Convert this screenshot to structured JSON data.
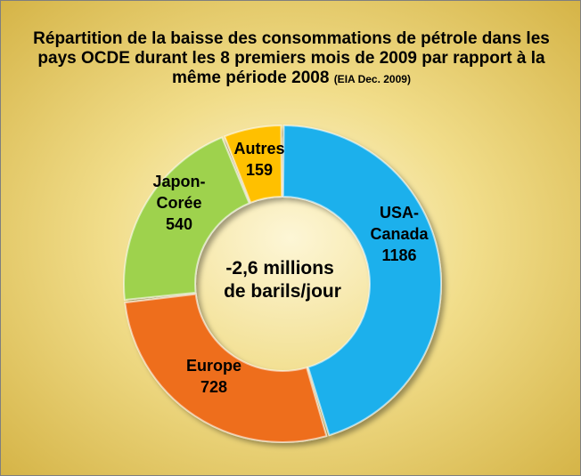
{
  "title": {
    "main": "Répartition de la baisse des consommations de pétrole  dans les pays OCDE durant les 8 premiers mois de 2009  par rapport à la même période 2008",
    "source": "(EIA Dec. 2009)"
  },
  "chart_data": {
    "type": "pie",
    "subtype": "doughnut",
    "categories": [
      "USA-Canada",
      "Europe",
      "Japon-Corée",
      "Autres"
    ],
    "values": [
      1186,
      728,
      540,
      159
    ],
    "label_lines": [
      [
        "USA-",
        "Canada",
        "1186"
      ],
      [
        "Europe",
        "728"
      ],
      [
        "Japon-",
        "Corée",
        "540"
      ],
      [
        "Autres",
        "159"
      ]
    ],
    "colors": [
      "#1ab0ec",
      "#ee6e1c",
      "#9ed24e",
      "#ffc000"
    ],
    "center_label": [
      "-2,6 millions",
      "de barils/jour"
    ],
    "start_angle_deg": 0,
    "direction": "clockwise"
  }
}
